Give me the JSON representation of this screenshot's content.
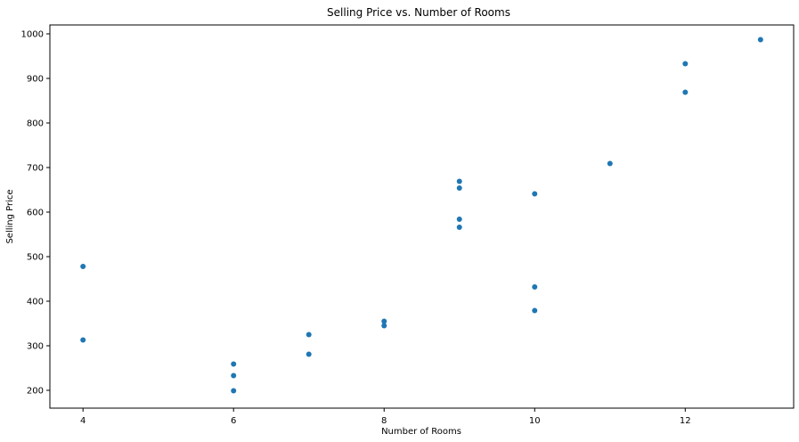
{
  "chart_data": {
    "type": "scatter",
    "title": "Selling Price vs. Number of Rooms",
    "xlabel": "Number of Rooms",
    "ylabel": "Selling Price",
    "xlim": [
      3.56,
      13.44
    ],
    "ylim": [
      160,
      1020
    ],
    "xticks": [
      4,
      6,
      8,
      10,
      12
    ],
    "yticks": [
      200,
      300,
      400,
      500,
      600,
      700,
      800,
      900,
      1000
    ],
    "grid": false,
    "color": "#1f77b4",
    "series": [
      {
        "x": [
          4,
          4,
          6,
          6,
          6,
          7,
          7,
          8,
          8,
          9,
          9,
          9,
          9,
          10,
          10,
          10,
          11,
          12,
          12,
          13
        ],
        "y": [
          478,
          313,
          259,
          233,
          199,
          325,
          281,
          355,
          345,
          669,
          654,
          584,
          566,
          641,
          432,
          379,
          709,
          933,
          869,
          987
        ]
      }
    ]
  }
}
